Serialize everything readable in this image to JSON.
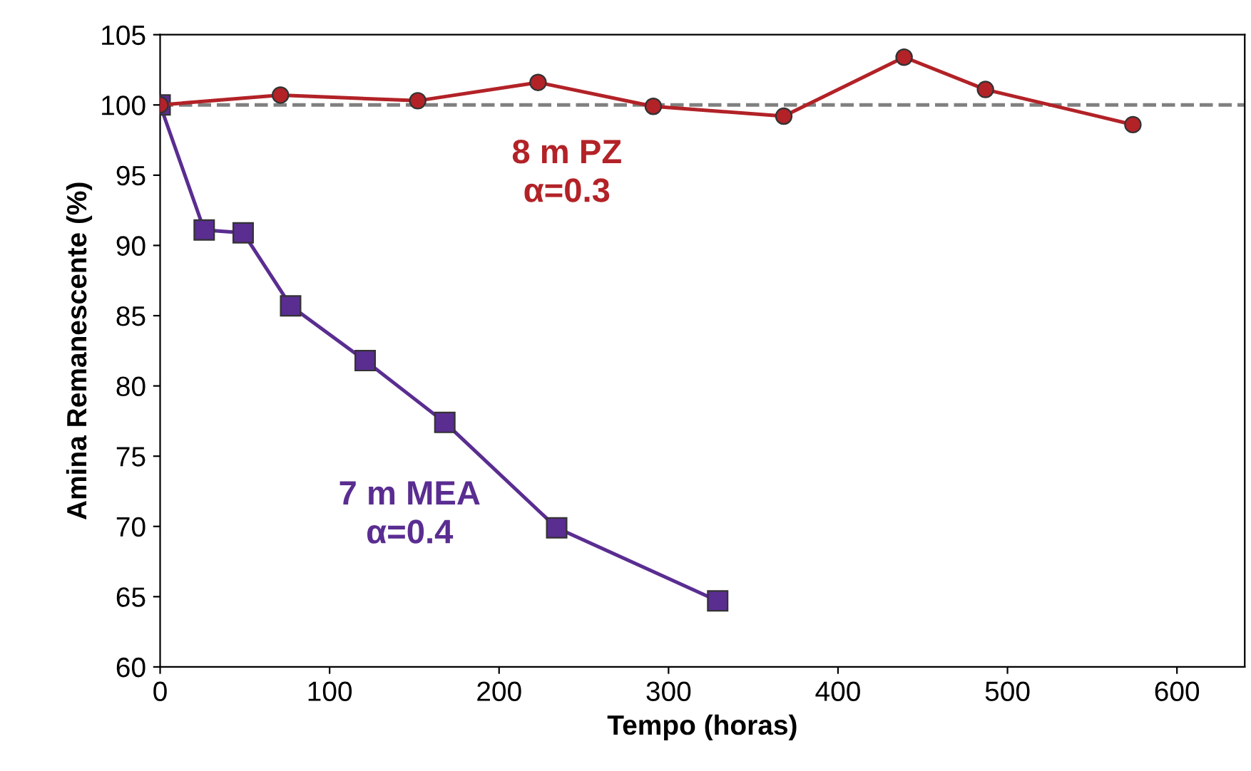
{
  "chart_data": {
    "type": "line",
    "xlabel": "Tempo (horas)",
    "ylabel": "Amina Remanescente (%)",
    "xlim": [
      0,
      640
    ],
    "xticks": [
      0,
      100,
      200,
      300,
      400,
      500,
      600
    ],
    "ylim": [
      60,
      105
    ],
    "yticks": [
      60,
      65,
      70,
      75,
      80,
      85,
      90,
      95,
      100,
      105
    ],
    "grid": false,
    "legend": false,
    "line_style": "solid",
    "ref_lines": [
      {
        "axis": "y",
        "value": 100,
        "color": "#808080",
        "line_style": "dashed"
      }
    ],
    "series": [
      {
        "name": "8 m PZ\nα=0.3",
        "color": "#b22227",
        "marker": "circle",
        "x": [
          0,
          71,
          152,
          223,
          291,
          368,
          439,
          487,
          574
        ],
        "values": [
          100,
          100.7,
          100.3,
          101.6,
          99.9,
          99.2,
          103.4,
          101.1,
          98.6
        ]
      },
      {
        "name": "7 m MEA\nα=0.4",
        "color": "#5a2d91",
        "marker": "square",
        "x": [
          0,
          26,
          49,
          77,
          121,
          168,
          234,
          329
        ],
        "values": [
          100,
          91.1,
          90.9,
          85.7,
          81.8,
          77.4,
          69.9,
          64.7
        ]
      }
    ]
  }
}
